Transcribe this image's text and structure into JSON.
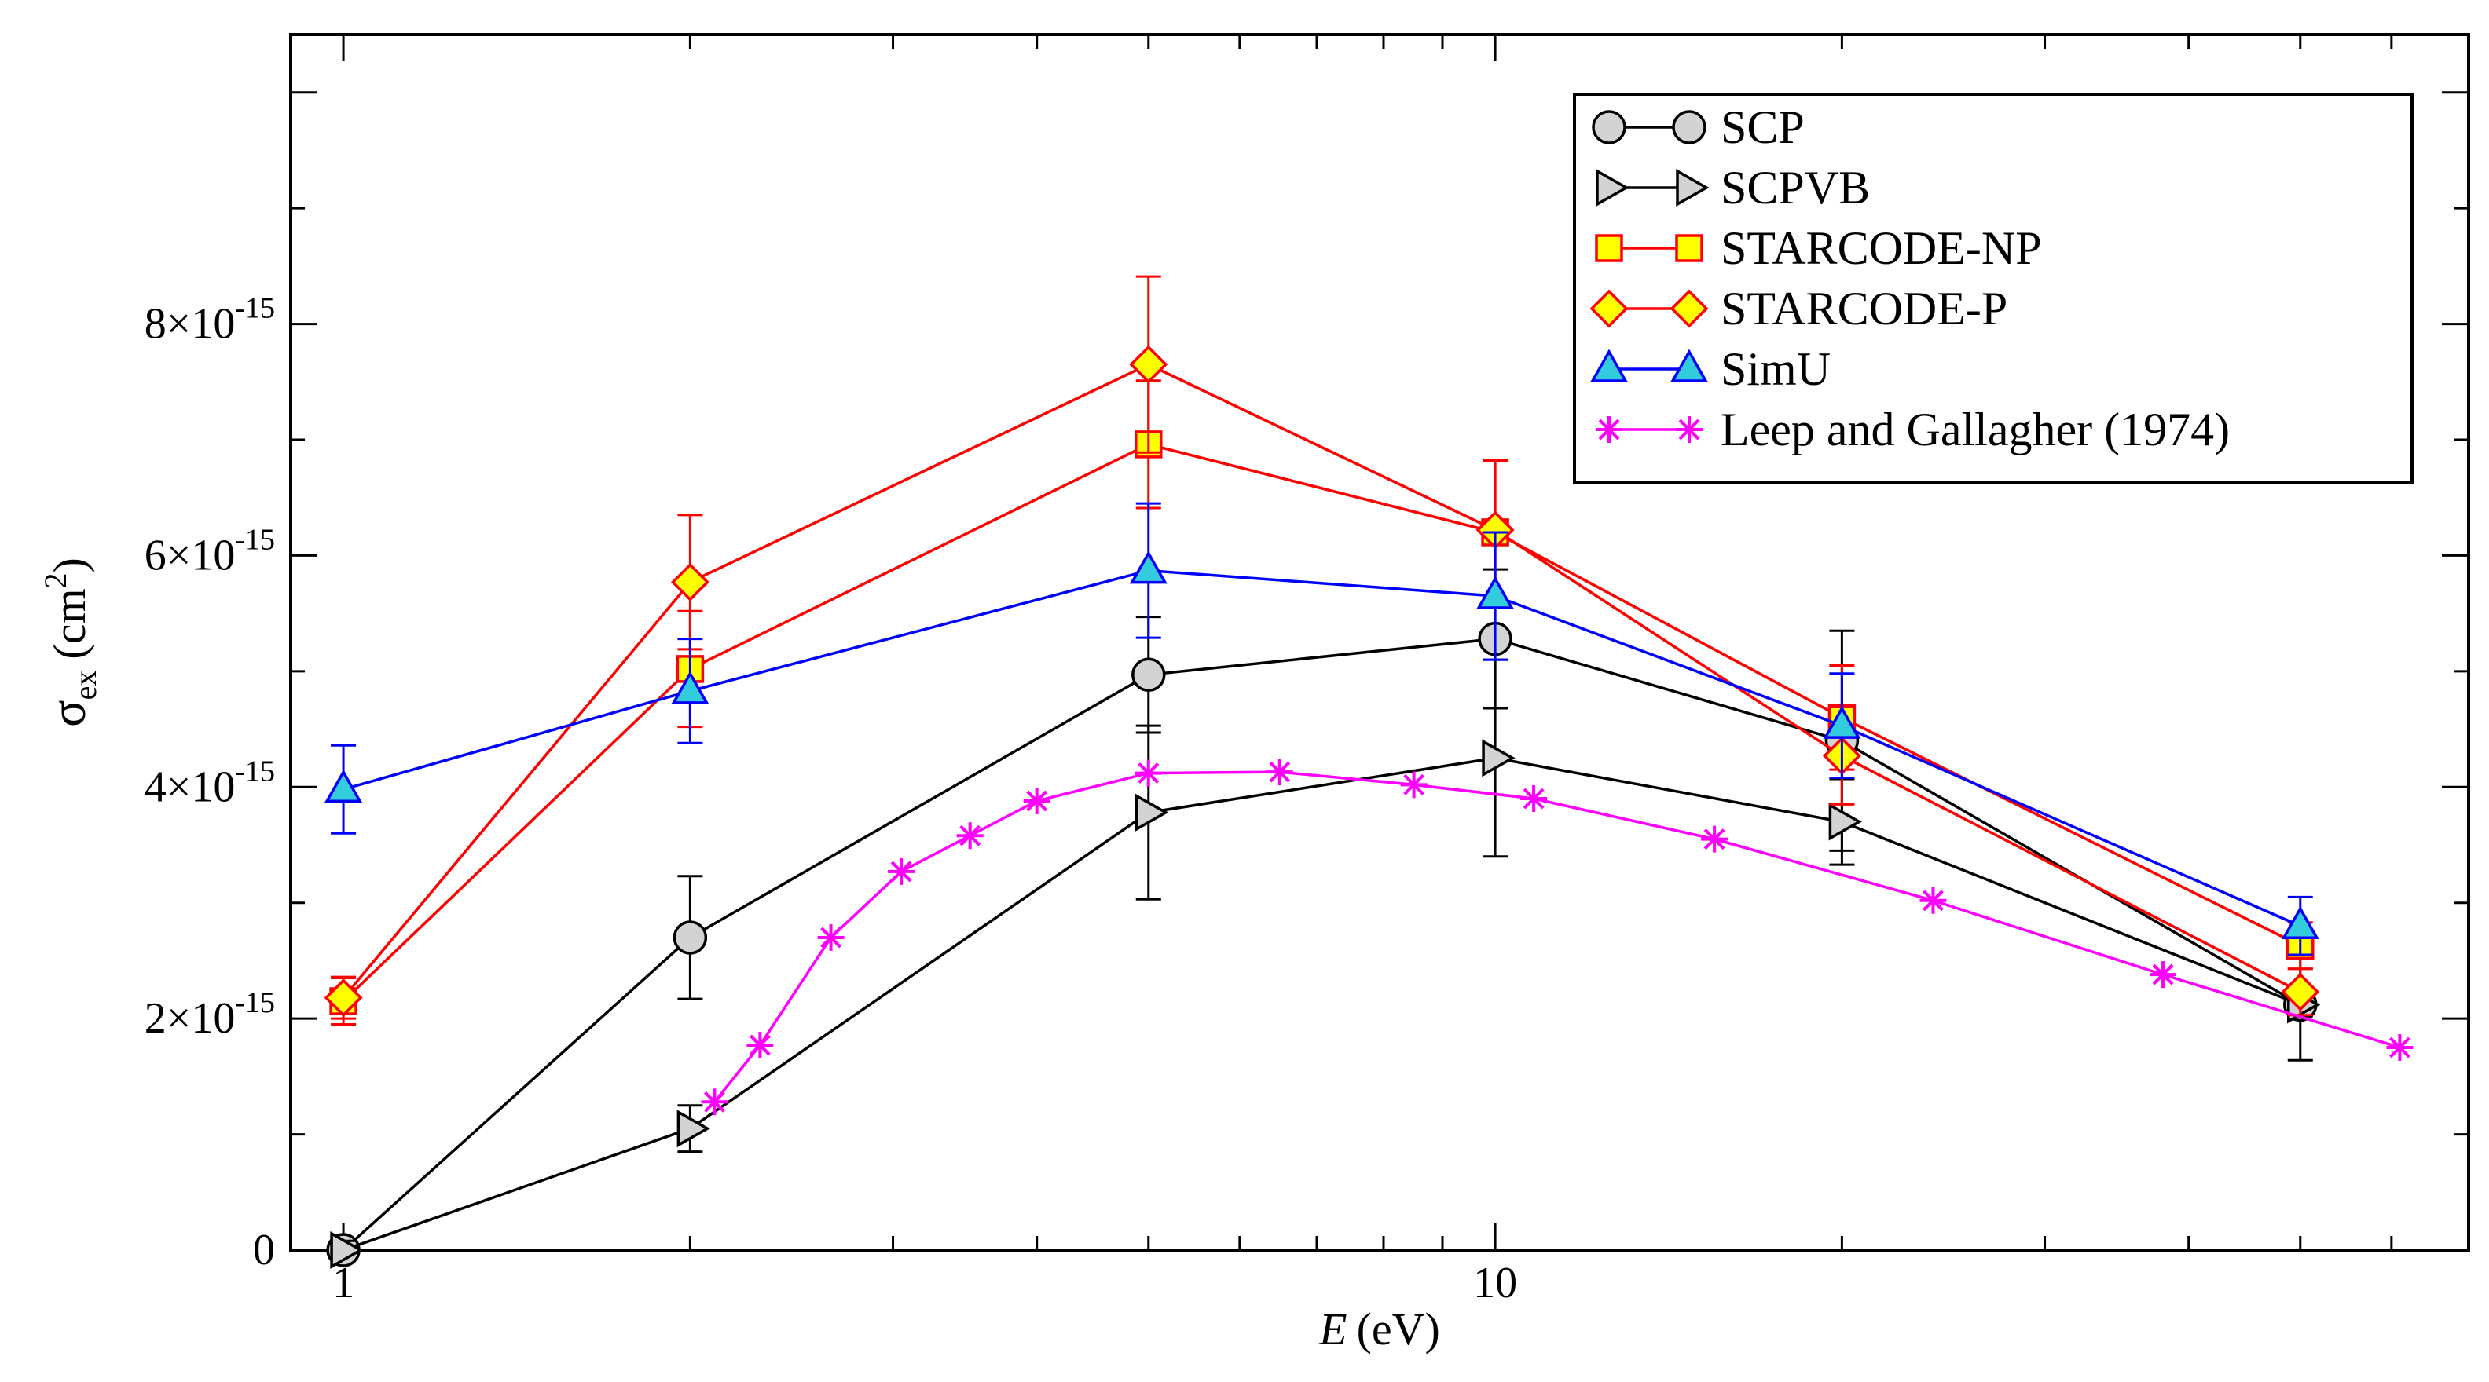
{
  "chart_data": {
    "type": "line",
    "title": "",
    "xlabel_var": "E",
    "xlabel_unit": "(eV)",
    "ylabel_sym": "σ",
    "ylabel_sub": "ex",
    "ylabel_unit_pre": "(cm",
    "ylabel_unit_sup": "2",
    "ylabel_unit_post": ")",
    "xscale": "log",
    "xlim": [
      0.9,
      70
    ],
    "ylim": [
      0,
      10.5
    ],
    "y_unit_note": "values in units of 1e-15 cm^2",
    "x_ticks": [
      {
        "value": 1,
        "label": "1"
      },
      {
        "value": 10,
        "label": "10"
      }
    ],
    "y_ticks": [
      {
        "value": 0,
        "mant": "0",
        "exp": ""
      },
      {
        "value": 2,
        "mant": "2×10",
        "exp": "-15"
      },
      {
        "value": 4,
        "mant": "4×10",
        "exp": "-15"
      },
      {
        "value": 6,
        "mant": "6×10",
        "exp": "-15"
      },
      {
        "value": 8,
        "mant": "8×10",
        "exp": "-15"
      }
    ],
    "legend_position": "top-right",
    "series": [
      {
        "name": "SCP",
        "color": "#000000",
        "marker": "circle",
        "fill": "#d3d3d3",
        "x": [
          1,
          2,
          5,
          10,
          20,
          50
        ],
        "y": [
          0,
          2.7,
          4.97,
          5.28,
          4.4,
          2.12
        ],
        "err": [
          0.08,
          0.53,
          0.5,
          0.6,
          0.95,
          0.48
        ]
      },
      {
        "name": "SCPVB",
        "color": "#000000",
        "marker": "triangle-right",
        "fill": "#d3d3d3",
        "x": [
          1,
          2,
          5,
          10,
          20,
          50
        ],
        "y": [
          0,
          1.05,
          3.78,
          4.25,
          3.7,
          2.12
        ],
        "err": [
          0.08,
          0.2,
          0.75,
          0.85,
          0.37,
          0.1
        ]
      },
      {
        "name": "STARCODE-NP",
        "color": "#ff0000",
        "marker": "square",
        "fill": "#ffff00",
        "x": [
          1,
          2,
          5,
          10,
          20,
          50
        ],
        "y": [
          2.15,
          5.02,
          6.96,
          6.2,
          4.6,
          2.63
        ],
        "err": [
          0.2,
          0.5,
          0.55,
          0.62,
          0.45,
          0.2
        ]
      },
      {
        "name": "STARCODE-P",
        "color": "#ff0000",
        "marker": "diamond",
        "fill": "#ffff00",
        "x": [
          1,
          2,
          5,
          10,
          20,
          50
        ],
        "y": [
          2.18,
          5.77,
          7.65,
          6.22,
          4.27,
          2.23
        ],
        "err": [
          0.18,
          0.58,
          0.76,
          0.6,
          0.42,
          0.2
        ]
      },
      {
        "name": "SimU",
        "color": "#0000ff",
        "marker": "triangle-up",
        "fill": "#33ccdd",
        "x": [
          1,
          2,
          5,
          10,
          20,
          50
        ],
        "y": [
          3.98,
          4.83,
          5.87,
          5.65,
          4.53,
          2.8
        ],
        "err": [
          0.38,
          0.45,
          0.58,
          0.55,
          0.45,
          0.25
        ]
      },
      {
        "name": "Leep and Gallagher (1974)",
        "color": "#ff00ff",
        "marker": "asterisk",
        "fill": "#ff00ff",
        "x": [
          2.1,
          2.3,
          2.65,
          3.05,
          3.5,
          4.0,
          5.0,
          6.5,
          8.5,
          10.8,
          15.5,
          24.0,
          38.0,
          61.0
        ],
        "y": [
          1.28,
          1.77,
          2.7,
          3.27,
          3.58,
          3.88,
          4.12,
          4.13,
          4.02,
          3.9,
          3.55,
          3.02,
          2.38,
          1.75
        ],
        "err": []
      }
    ]
  }
}
